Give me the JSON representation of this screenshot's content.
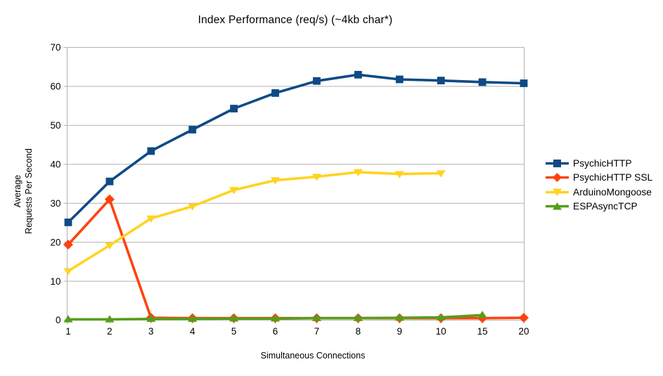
{
  "chart_data": {
    "type": "line",
    "title": "Index Performance (req/s) (~4kb char*)",
    "xlabel": "Simultaneous Connections",
    "ylabel_lines": [
      "Average",
      "Requests Per Second"
    ],
    "categories": [
      "1",
      "2",
      "3",
      "4",
      "5",
      "6",
      "7",
      "8",
      "9",
      "10",
      "15",
      "20"
    ],
    "y_ticks": [
      0,
      10,
      20,
      30,
      40,
      50,
      60,
      70
    ],
    "ylim": [
      0,
      70
    ],
    "grid": "horizontal",
    "legend_position": "right",
    "series": [
      {
        "name": "PsychicHTTP",
        "color": "#0e4a86",
        "marker": "square",
        "values": [
          25.1,
          35.6,
          43.4,
          48.9,
          54.3,
          58.3,
          61.4,
          63.0,
          61.8,
          61.5,
          61.1,
          60.8
        ]
      },
      {
        "name": "PsychicHTTP SSL",
        "color": "#ff420e",
        "marker": "diamond",
        "values": [
          19.4,
          31.0,
          0.6,
          0.5,
          0.5,
          0.5,
          0.5,
          0.5,
          0.5,
          0.5,
          0.5,
          0.6
        ]
      },
      {
        "name": "ArduinoMongoose",
        "color": "#ffd320",
        "marker": "triangle-down",
        "values": [
          12.6,
          19.2,
          26.1,
          29.2,
          33.4,
          35.9,
          36.8,
          38.0,
          37.5,
          37.7,
          null,
          null
        ]
      },
      {
        "name": "ESPAsyncTCP",
        "color": "#579d1c",
        "marker": "triangle-up",
        "values": [
          0.2,
          0.2,
          0.3,
          0.3,
          0.4,
          0.4,
          0.5,
          0.5,
          0.6,
          0.7,
          1.3,
          null
        ]
      }
    ]
  }
}
